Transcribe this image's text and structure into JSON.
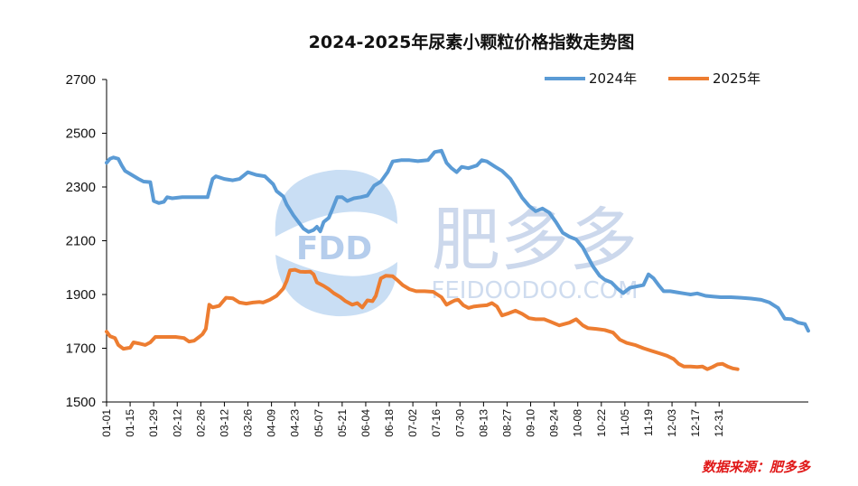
{
  "chart_data": {
    "type": "line",
    "title": "2024-2025年尿素小颗粒价格指数走势图",
    "xlabel": "",
    "ylabel": "",
    "ylim": [
      1500,
      2700
    ],
    "yticks": [
      1500,
      1700,
      1900,
      2100,
      2300,
      2500,
      2700
    ],
    "xtick_labels": [
      "01-01",
      "01-15",
      "01-29",
      "02-12",
      "02-26",
      "03-12",
      "03-26",
      "04-09",
      "04-23",
      "05-07",
      "05-21",
      "06-04",
      "06-18",
      "07-02",
      "07-16",
      "07-30",
      "08-13",
      "08-27",
      "09-10",
      "09-24",
      "10-08",
      "10-22",
      "11-05",
      "11-19",
      "12-03",
      "12-17",
      "12-31"
    ],
    "x_day_range": [
      1,
      366
    ],
    "legend_position": "top-right",
    "grid": false,
    "series": [
      {
        "name": "2024年",
        "color": "#5b9bd5",
        "points": [
          [
            1,
            2390
          ],
          [
            3,
            2405
          ],
          [
            5,
            2410
          ],
          [
            8,
            2405
          ],
          [
            10,
            2380
          ],
          [
            12,
            2360
          ],
          [
            16,
            2345
          ],
          [
            20,
            2330
          ],
          [
            23,
            2320
          ],
          [
            27,
            2318
          ],
          [
            29,
            2248
          ],
          [
            32,
            2240
          ],
          [
            35,
            2245
          ],
          [
            37,
            2262
          ],
          [
            40,
            2258
          ],
          [
            46,
            2262
          ],
          [
            54,
            2262
          ],
          [
            61,
            2262
          ],
          [
            64,
            2330
          ],
          [
            66,
            2340
          ],
          [
            71,
            2330
          ],
          [
            76,
            2325
          ],
          [
            80,
            2330
          ],
          [
            85,
            2355
          ],
          [
            90,
            2345
          ],
          [
            95,
            2340
          ],
          [
            100,
            2310
          ],
          [
            102,
            2285
          ],
          [
            106,
            2265
          ],
          [
            108,
            2235
          ],
          [
            112,
            2195
          ],
          [
            115,
            2170
          ],
          [
            118,
            2145
          ],
          [
            121,
            2133
          ],
          [
            124,
            2140
          ],
          [
            126,
            2152
          ],
          [
            128,
            2135
          ],
          [
            130,
            2170
          ],
          [
            133,
            2185
          ],
          [
            135,
            2215
          ],
          [
            138,
            2262
          ],
          [
            141,
            2262
          ],
          [
            144,
            2248
          ],
          [
            148,
            2258
          ],
          [
            152,
            2262
          ],
          [
            156,
            2268
          ],
          [
            160,
            2305
          ],
          [
            164,
            2320
          ],
          [
            168,
            2355
          ],
          [
            171,
            2395
          ],
          [
            176,
            2400
          ],
          [
            181,
            2400
          ],
          [
            186,
            2396
          ],
          [
            192,
            2400
          ],
          [
            196,
            2430
          ],
          [
            200,
            2435
          ],
          [
            203,
            2390
          ],
          [
            206,
            2370
          ],
          [
            209,
            2355
          ],
          [
            212,
            2375
          ],
          [
            216,
            2370
          ],
          [
            221,
            2380
          ],
          [
            224,
            2400
          ],
          [
            227,
            2395
          ],
          [
            232,
            2375
          ],
          [
            236,
            2360
          ],
          [
            241,
            2330
          ],
          [
            244,
            2300
          ],
          [
            248,
            2260
          ],
          [
            252,
            2230
          ],
          [
            256,
            2210
          ],
          [
            260,
            2220
          ],
          [
            264,
            2205
          ],
          [
            268,
            2170
          ],
          [
            272,
            2130
          ],
          [
            276,
            2115
          ],
          [
            280,
            2105
          ],
          [
            284,
            2075
          ],
          [
            287,
            2040
          ],
          [
            290,
            2005
          ],
          [
            294,
            1970
          ],
          [
            297,
            1955
          ],
          [
            301,
            1945
          ],
          [
            305,
            1920
          ],
          [
            308,
            1905
          ],
          [
            312,
            1925
          ],
          [
            316,
            1930
          ],
          [
            320,
            1935
          ],
          [
            323,
            1975
          ],
          [
            326,
            1960
          ],
          [
            329,
            1935
          ],
          [
            332,
            1912
          ],
          [
            336,
            1912
          ],
          [
            340,
            1908
          ],
          [
            344,
            1904
          ],
          [
            348,
            1900
          ],
          [
            352,
            1904
          ],
          [
            357,
            1895
          ],
          [
            362,
            1892
          ],
          [
            366,
            1890
          ],
          [
            372,
            1890
          ],
          [
            378,
            1888
          ],
          [
            384,
            1885
          ],
          [
            390,
            1880
          ],
          [
            395,
            1870
          ],
          [
            400,
            1850
          ],
          [
            404,
            1810
          ],
          [
            408,
            1808
          ],
          [
            412,
            1795
          ],
          [
            416,
            1790
          ],
          [
            418,
            1765
          ]
        ]
      },
      {
        "name": "2025年",
        "color": "#ed7d31",
        "points": [
          [
            1,
            1762
          ],
          [
            3,
            1745
          ],
          [
            6,
            1738
          ],
          [
            8,
            1712
          ],
          [
            11,
            1698
          ],
          [
            15,
            1702
          ],
          [
            17,
            1722
          ],
          [
            20,
            1718
          ],
          [
            24,
            1712
          ],
          [
            27,
            1722
          ],
          [
            30,
            1742
          ],
          [
            36,
            1742
          ],
          [
            42,
            1742
          ],
          [
            47,
            1738
          ],
          [
            50,
            1725
          ],
          [
            53,
            1728
          ],
          [
            56,
            1742
          ],
          [
            58,
            1752
          ],
          [
            60,
            1772
          ],
          [
            62,
            1862
          ],
          [
            64,
            1852
          ],
          [
            68,
            1858
          ],
          [
            72,
            1888
          ],
          [
            76,
            1886
          ],
          [
            80,
            1870
          ],
          [
            84,
            1866
          ],
          [
            88,
            1870
          ],
          [
            92,
            1872
          ],
          [
            94,
            1870
          ],
          [
            98,
            1880
          ],
          [
            102,
            1895
          ],
          [
            106,
            1922
          ],
          [
            108,
            1950
          ],
          [
            110,
            1990
          ],
          [
            113,
            1992
          ],
          [
            116,
            1985
          ],
          [
            119,
            1984
          ],
          [
            122,
            1985
          ],
          [
            124,
            1975
          ],
          [
            126,
            1945
          ],
          [
            130,
            1932
          ],
          [
            133,
            1920
          ],
          [
            136,
            1905
          ],
          [
            140,
            1890
          ],
          [
            143,
            1875
          ],
          [
            147,
            1862
          ],
          [
            150,
            1868
          ],
          [
            153,
            1852
          ],
          [
            156,
            1878
          ],
          [
            159,
            1875
          ],
          [
            161,
            1895
          ],
          [
            164,
            1960
          ],
          [
            167,
            1970
          ],
          [
            171,
            1968
          ],
          [
            174,
            1952
          ],
          [
            177,
            1935
          ],
          [
            181,
            1920
          ],
          [
            185,
            1912
          ],
          [
            190,
            1912
          ],
          [
            195,
            1910
          ],
          [
            200,
            1890
          ],
          [
            203,
            1862
          ],
          [
            206,
            1872
          ],
          [
            208,
            1878
          ],
          [
            210,
            1880
          ],
          [
            213,
            1860
          ],
          [
            216,
            1850
          ],
          [
            219,
            1855
          ],
          [
            223,
            1858
          ],
          [
            227,
            1860
          ],
          [
            230,
            1868
          ],
          [
            233,
            1855
          ],
          [
            236,
            1822
          ],
          [
            240,
            1830
          ],
          [
            244,
            1840
          ],
          [
            248,
            1828
          ],
          [
            252,
            1812
          ],
          [
            256,
            1808
          ],
          [
            261,
            1808
          ],
          [
            265,
            1798
          ],
          [
            270,
            1785
          ],
          [
            276,
            1795
          ],
          [
            280,
            1808
          ],
          [
            284,
            1785
          ],
          [
            287,
            1775
          ],
          [
            292,
            1772
          ],
          [
            297,
            1768
          ],
          [
            302,
            1758
          ],
          [
            306,
            1732
          ],
          [
            310,
            1720
          ],
          [
            315,
            1712
          ],
          [
            320,
            1700
          ],
          [
            325,
            1690
          ],
          [
            330,
            1680
          ],
          [
            334,
            1672
          ],
          [
            338,
            1660
          ],
          [
            341,
            1642
          ],
          [
            344,
            1632
          ],
          [
            348,
            1632
          ],
          [
            352,
            1630
          ],
          [
            355,
            1632
          ],
          [
            358,
            1622
          ],
          [
            361,
            1630
          ],
          [
            364,
            1640
          ],
          [
            367,
            1642
          ],
          [
            370,
            1632
          ],
          [
            373,
            1625
          ],
          [
            376,
            1622
          ]
        ]
      }
    ]
  },
  "watermark": {
    "logo_text": "FDD",
    "brand_cn": "肥多多",
    "url_text": "FEIDOODOO.COM"
  },
  "source_label": "数据来源：肥多多"
}
